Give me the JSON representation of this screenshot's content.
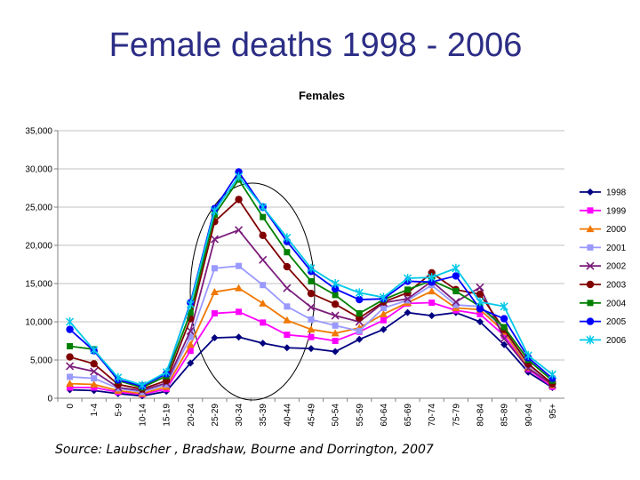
{
  "slide": {
    "title": "Female deaths 1998 - 2006",
    "source": "Source: Laubscher , Bradshaw, Bourne and Dorrington, 2007"
  },
  "chart_data": {
    "type": "line",
    "title": "Females",
    "xlabel": "",
    "ylabel": "",
    "ylim": [
      0,
      35000
    ],
    "yticks": [
      0,
      5000,
      10000,
      15000,
      20000,
      25000,
      30000,
      35000
    ],
    "ytick_labels": [
      "0",
      "5,000",
      "10,000",
      "15,000",
      "20,000",
      "25,000",
      "30,000",
      "35,000"
    ],
    "grid": true,
    "legend": "right",
    "annotation": "ellipse highlighting ages 20-24 to 45-49",
    "categories": [
      "0",
      "1-4",
      "5-9",
      "10-14",
      "15-19",
      "20-24",
      "25-29",
      "30-34",
      "35-39",
      "40-44",
      "45-49",
      "50-54",
      "55-59",
      "60-64",
      "65-69",
      "70-74",
      "75-79",
      "80-84",
      "85-89",
      "90-94",
      "95+"
    ],
    "series": [
      {
        "name": "1998",
        "color": "#000080",
        "marker": "diamond",
        "values": [
          1100,
          1000,
          600,
          300,
          900,
          4600,
          7900,
          8000,
          7200,
          6600,
          6500,
          6100,
          7700,
          9000,
          11200,
          10800,
          11200,
          10000,
          7000,
          3400,
          1400
        ]
      },
      {
        "name": "1999",
        "color": "#ff00ff",
        "marker": "square",
        "values": [
          1400,
          1400,
          800,
          500,
          1200,
          6200,
          11100,
          11300,
          9900,
          8300,
          8000,
          7500,
          8700,
          10200,
          12400,
          12500,
          11500,
          11000,
          8200,
          3800,
          1500
        ]
      },
      {
        "name": "2000",
        "color": "#f07800",
        "marker": "triangle",
        "values": [
          1900,
          1800,
          1000,
          600,
          1500,
          7000,
          13900,
          14400,
          12400,
          10200,
          9000,
          8500,
          9200,
          11000,
          12500,
          14000,
          11800,
          11600,
          8700,
          4000,
          1700
        ]
      },
      {
        "name": "2001",
        "color": "#9999ff",
        "marker": "square",
        "values": [
          2800,
          2600,
          1300,
          800,
          1800,
          8000,
          17000,
          17300,
          14800,
          12000,
          10300,
          9500,
          8800,
          11800,
          12800,
          14800,
          12200,
          12000,
          9000,
          4300,
          1900
        ]
      },
      {
        "name": "2002",
        "color": "#7b1c7b",
        "marker": "x",
        "values": [
          4200,
          3500,
          1400,
          1000,
          2000,
          8800,
          20800,
          22000,
          18100,
          14400,
          11900,
          10800,
          10000,
          12500,
          13000,
          15300,
          12600,
          14500,
          7800,
          3900,
          1800
        ]
      },
      {
        "name": "2003",
        "color": "#800000",
        "marker": "circle",
        "values": [
          5400,
          4500,
          1800,
          1200,
          2300,
          10400,
          23100,
          26000,
          21300,
          17200,
          13700,
          12300,
          10500,
          12600,
          13800,
          16400,
          14200,
          13600,
          9000,
          4500,
          1900
        ]
      },
      {
        "name": "2004",
        "color": "#008000",
        "marker": "square",
        "values": [
          6800,
          6400,
          2300,
          1400,
          2900,
          11200,
          24000,
          28600,
          23700,
          19100,
          15300,
          13500,
          11100,
          12900,
          14200,
          15400,
          14000,
          12000,
          9300,
          5000,
          2300
        ]
      },
      {
        "name": "2005",
        "color": "#0000ff",
        "marker": "circle",
        "values": [
          9000,
          6200,
          2400,
          1600,
          3200,
          12500,
          24800,
          29600,
          25000,
          20500,
          16600,
          14300,
          12900,
          13000,
          15300,
          15200,
          16000,
          11700,
          10400,
          5300,
          2600
        ]
      },
      {
        "name": "2006",
        "color": "#00c8e8",
        "marker": "asterisk",
        "values": [
          10000,
          6300,
          2700,
          1700,
          3400,
          12300,
          24500,
          29000,
          25000,
          21000,
          17000,
          15000,
          13800,
          13200,
          15700,
          15800,
          17000,
          12600,
          12000,
          5600,
          3100
        ]
      }
    ]
  }
}
